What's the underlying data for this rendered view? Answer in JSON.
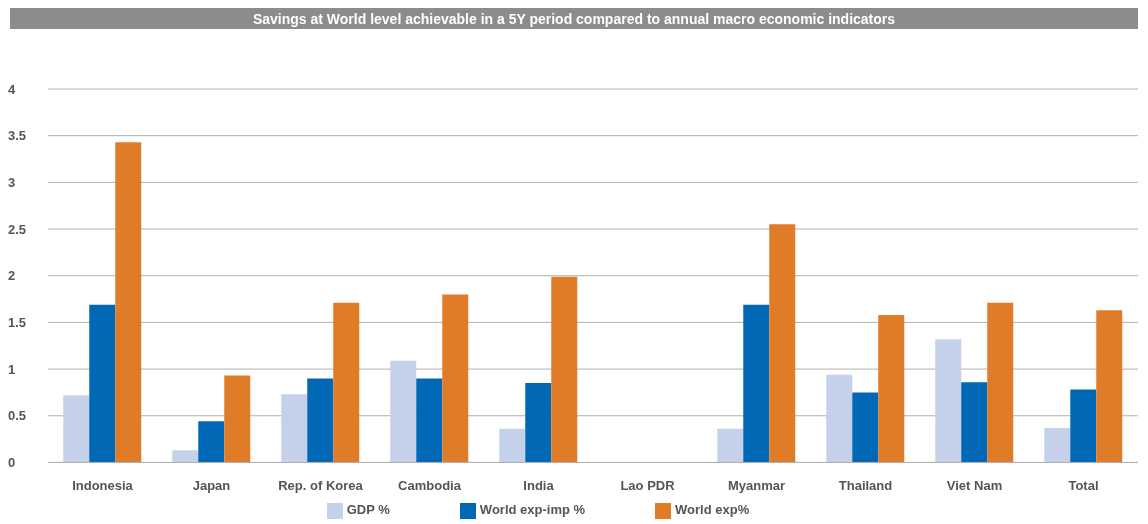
{
  "chart_data": {
    "type": "bar",
    "title": "Savings at World level achievable in a 5Y period compared to annual macro economic indicators",
    "categories": [
      "Indonesia",
      "Japan",
      "Rep. of Korea",
      "Cambodia",
      "India",
      "Lao PDR",
      "Myanmar",
      "Thailand",
      "Viet Nam",
      "Total"
    ],
    "series": [
      {
        "name": "GDP %",
        "color": "#c5d0ea",
        "values": [
          0.72,
          0.13,
          0.73,
          1.09,
          0.36,
          null,
          0.36,
          0.94,
          1.32,
          0.37
        ]
      },
      {
        "name": "World exp-imp %",
        "color": "#0068b5",
        "values": [
          1.69,
          0.44,
          0.9,
          0.9,
          0.85,
          null,
          1.69,
          0.75,
          0.86,
          0.78
        ]
      },
      {
        "name": "World exp%",
        "color": "#e07b28",
        "values": [
          3.43,
          0.93,
          1.71,
          1.8,
          1.99,
          null,
          2.55,
          1.58,
          1.71,
          1.63
        ]
      }
    ],
    "ylim": [
      0,
      4
    ],
    "yticks": [
      0,
      0.5,
      1,
      1.5,
      2,
      2.5,
      3,
      3.5,
      4
    ],
    "grid": "y",
    "legend": "bottom"
  }
}
